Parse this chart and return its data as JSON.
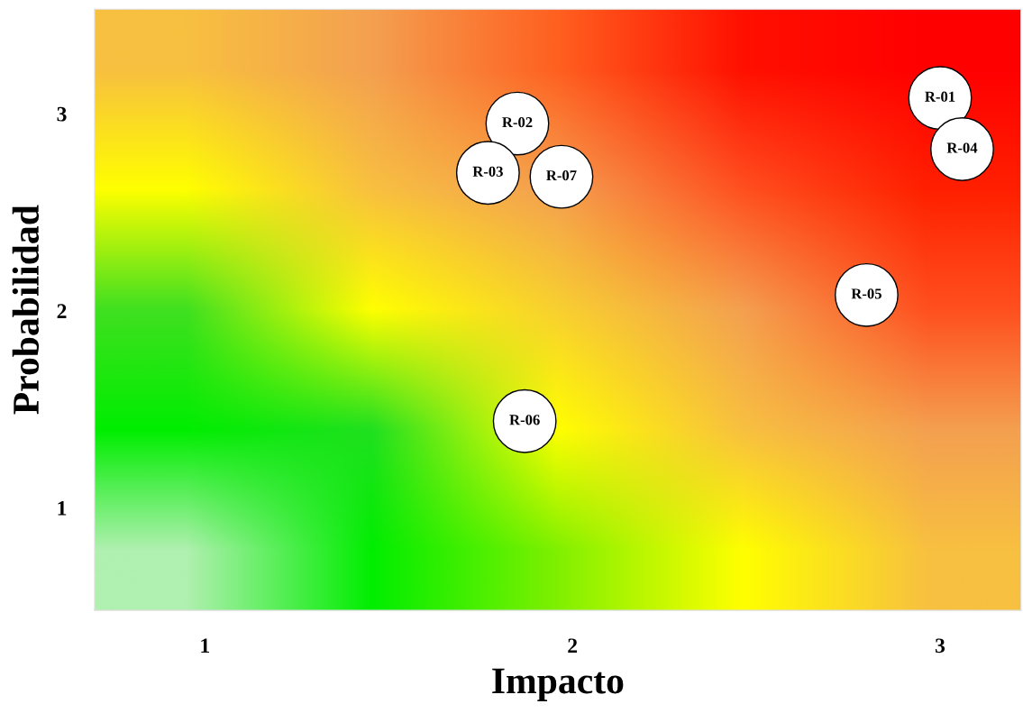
{
  "chart_data": {
    "type": "scatter",
    "xlabel": "Impacto",
    "ylabel": "Probabilidad",
    "x": [
      3.0,
      3.06,
      1.85,
      1.77,
      1.97,
      2.8,
      1.87
    ],
    "series": [
      {
        "color": "#ffffff",
        "values": [
          3.08,
          2.82,
          2.95,
          2.7,
          2.68,
          2.08,
          1.44
        ]
      }
    ],
    "xlim": [
      0.7,
      3.22
    ],
    "xticks": [
      1,
      2,
      3
    ],
    "ylim": [
      0.48,
      3.53
    ],
    "yticks": [
      1,
      2,
      3
    ],
    "marker": "circle",
    "grid": false,
    "annotations": [
      {
        "text": "R-01",
        "x": 3.0,
        "y": 3.08
      },
      {
        "text": "R-04",
        "x": 3.06,
        "y": 2.82
      },
      {
        "text": "R-02",
        "x": 1.85,
        "y": 2.95
      },
      {
        "text": "R-03",
        "x": 1.77,
        "y": 2.7
      },
      {
        "text": "R-07",
        "x": 1.97,
        "y": 2.68
      },
      {
        "text": "R-05",
        "x": 2.8,
        "y": 2.08
      },
      {
        "text": "R-06",
        "x": 1.87,
        "y": 1.44
      }
    ]
  }
}
